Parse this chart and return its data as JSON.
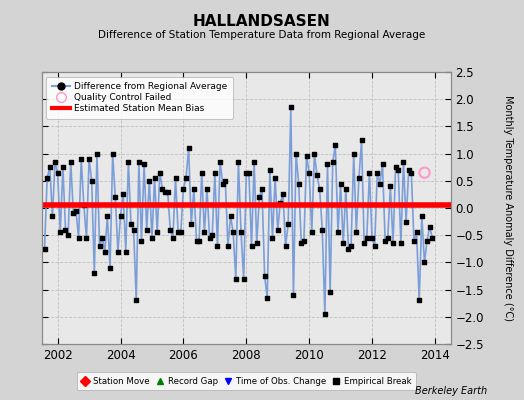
{
  "title": "HALLANDSASEN",
  "subtitle": "Difference of Station Temperature Data from Regional Average",
  "ylabel": "Monthly Temperature Anomaly Difference (°C)",
  "xlim": [
    2001.5,
    2014.5
  ],
  "ylim": [
    -2.5,
    2.5
  ],
  "yticks": [
    -2.5,
    -2,
    -1.5,
    -1,
    -0.5,
    0,
    0.5,
    1,
    1.5,
    2,
    2.5
  ],
  "xticks": [
    2002,
    2004,
    2006,
    2008,
    2010,
    2012,
    2014
  ],
  "bias_value": 0.05,
  "line_color": "#7b9ed9",
  "bias_color": "red",
  "marker_color": "black",
  "bg_color": "#e8e8e8",
  "outer_bg": "#d4d4d4",
  "grid_color": "#c0c0c0",
  "grid_style": "--",
  "qc_fail_x": 2013.67,
  "qc_fail_y": 0.65,
  "watermark": "Berkeley Earth",
  "bias_lw": 4.0,
  "line_lw": 1.2,
  "data_x": [
    2001.583,
    2001.667,
    2001.75,
    2001.833,
    2001.917,
    2002.0,
    2002.083,
    2002.167,
    2002.25,
    2002.333,
    2002.417,
    2002.5,
    2002.583,
    2002.667,
    2002.75,
    2002.833,
    2002.917,
    2003.0,
    2003.083,
    2003.167,
    2003.25,
    2003.333,
    2003.417,
    2003.5,
    2003.583,
    2003.667,
    2003.75,
    2003.833,
    2003.917,
    2004.0,
    2004.083,
    2004.167,
    2004.25,
    2004.333,
    2004.417,
    2004.5,
    2004.583,
    2004.667,
    2004.75,
    2004.833,
    2004.917,
    2005.0,
    2005.083,
    2005.167,
    2005.25,
    2005.333,
    2005.417,
    2005.5,
    2005.583,
    2005.667,
    2005.75,
    2005.833,
    2005.917,
    2006.0,
    2006.083,
    2006.167,
    2006.25,
    2006.333,
    2006.417,
    2006.5,
    2006.583,
    2006.667,
    2006.75,
    2006.833,
    2006.917,
    2007.0,
    2007.083,
    2007.167,
    2007.25,
    2007.333,
    2007.417,
    2007.5,
    2007.583,
    2007.667,
    2007.75,
    2007.833,
    2007.917,
    2008.0,
    2008.083,
    2008.167,
    2008.25,
    2008.333,
    2008.417,
    2008.5,
    2008.583,
    2008.667,
    2008.75,
    2008.833,
    2008.917,
    2009.0,
    2009.083,
    2009.167,
    2009.25,
    2009.333,
    2009.417,
    2009.5,
    2009.583,
    2009.667,
    2009.75,
    2009.833,
    2009.917,
    2010.0,
    2010.083,
    2010.167,
    2010.25,
    2010.333,
    2010.417,
    2010.5,
    2010.583,
    2010.667,
    2010.75,
    2010.833,
    2010.917,
    2011.0,
    2011.083,
    2011.167,
    2011.25,
    2011.333,
    2011.417,
    2011.5,
    2011.583,
    2011.667,
    2011.75,
    2011.833,
    2011.917,
    2012.0,
    2012.083,
    2012.167,
    2012.25,
    2012.333,
    2012.417,
    2012.5,
    2012.583,
    2012.667,
    2012.75,
    2012.833,
    2012.917,
    2013.0,
    2013.083,
    2013.167,
    2013.25,
    2013.333,
    2013.417,
    2013.5,
    2013.583,
    2013.667,
    2013.75,
    2013.833,
    2013.917
  ],
  "data_y": [
    -0.75,
    0.55,
    0.75,
    -0.15,
    0.85,
    0.65,
    -0.45,
    0.75,
    -0.4,
    -0.5,
    0.85,
    -0.1,
    -0.05,
    -0.55,
    0.9,
    0.05,
    -0.55,
    0.9,
    0.5,
    -1.2,
    1.0,
    -0.7,
    -0.55,
    -0.8,
    -0.15,
    -1.1,
    1.0,
    0.2,
    -0.8,
    -0.15,
    0.25,
    -0.8,
    0.85,
    -0.3,
    -0.4,
    -1.7,
    0.85,
    -0.6,
    0.8,
    -0.4,
    0.5,
    -0.55,
    0.55,
    -0.45,
    0.65,
    0.35,
    0.3,
    0.3,
    -0.4,
    -0.55,
    0.55,
    -0.45,
    -0.45,
    0.35,
    0.55,
    1.1,
    -0.3,
    0.35,
    -0.6,
    -0.6,
    0.65,
    -0.45,
    0.35,
    -0.55,
    -0.5,
    0.65,
    -0.7,
    0.85,
    0.45,
    0.5,
    -0.7,
    -0.15,
    -0.45,
    -1.3,
    0.85,
    -0.45,
    -1.3,
    0.65,
    0.65,
    -0.7,
    0.85,
    -0.65,
    0.2,
    0.35,
    -1.25,
    -1.65,
    0.7,
    -0.55,
    0.55,
    -0.4,
    0.1,
    0.25,
    -0.7,
    -0.3,
    1.85,
    -1.6,
    1.0,
    0.45,
    -0.65,
    -0.6,
    0.95,
    0.65,
    -0.45,
    1.0,
    0.6,
    0.35,
    -0.4,
    -1.95,
    0.8,
    -1.55,
    0.85,
    1.15,
    -0.45,
    0.45,
    -0.65,
    0.35,
    -0.75,
    -0.7,
    1.0,
    -0.45,
    0.55,
    1.25,
    -0.65,
    -0.55,
    0.65,
    -0.55,
    -0.7,
    0.65,
    0.45,
    0.8,
    -0.6,
    -0.55,
    0.4,
    -0.65,
    0.75,
    0.7,
    -0.65,
    0.85,
    -0.25,
    0.7,
    0.65,
    -0.6,
    -0.45,
    -1.7,
    -0.15,
    -1.0,
    -0.6,
    -0.35,
    -0.55
  ]
}
